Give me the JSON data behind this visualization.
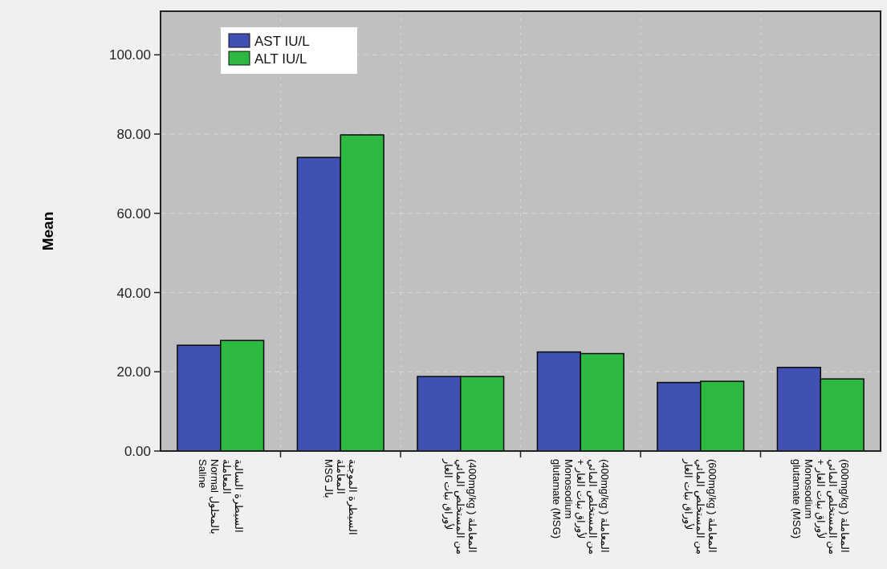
{
  "chart_data": {
    "type": "bar",
    "ylabel": "Mean",
    "categories": [
      "السيطرة السالبة المعاملة\nبالمحلول Normal\nSaline",
      "السيطرة الموجبة المعاملة\nبالـ MSG",
      "المعاملة ( 400mg/kg)\nمن المستخلص المائي\nلأوراق نبات الغار",
      "المعاملة ( 400mg/kg)\nمن المستخلص المائي\nلأوراق نبات الغار +\nMonosodium\nglutamate (MSG)",
      "المعاملة ( 600mg/kg)\nمن المستخلص المائي\nلأوراق نبات الغار",
      "المعاملة ( 600mg/kg)\nمن المستخلص المائي\nلأوراق نبات الغار +\nMonosodium\nglutamate (MSG)"
    ],
    "series": [
      {
        "name": "AST IU/L",
        "color": "#4151b3",
        "values": [
          26.7,
          74.1,
          18.8,
          25.0,
          17.3,
          21.1
        ]
      },
      {
        "name": "ALT IU/L",
        "color": "#2db842",
        "values": [
          27.9,
          79.8,
          18.8,
          24.6,
          17.6,
          18.2
        ]
      }
    ],
    "ylim": [
      0,
      111
    ],
    "yticks": [
      {
        "value": 0,
        "label": "0.00"
      },
      {
        "value": 20,
        "label": "20.00"
      },
      {
        "value": 40,
        "label": "40.00"
      },
      {
        "value": 60,
        "label": "60.00"
      },
      {
        "value": 80,
        "label": "80.00"
      },
      {
        "value": 100,
        "label": "100.00"
      }
    ],
    "grid": true,
    "legend": "top left"
  }
}
